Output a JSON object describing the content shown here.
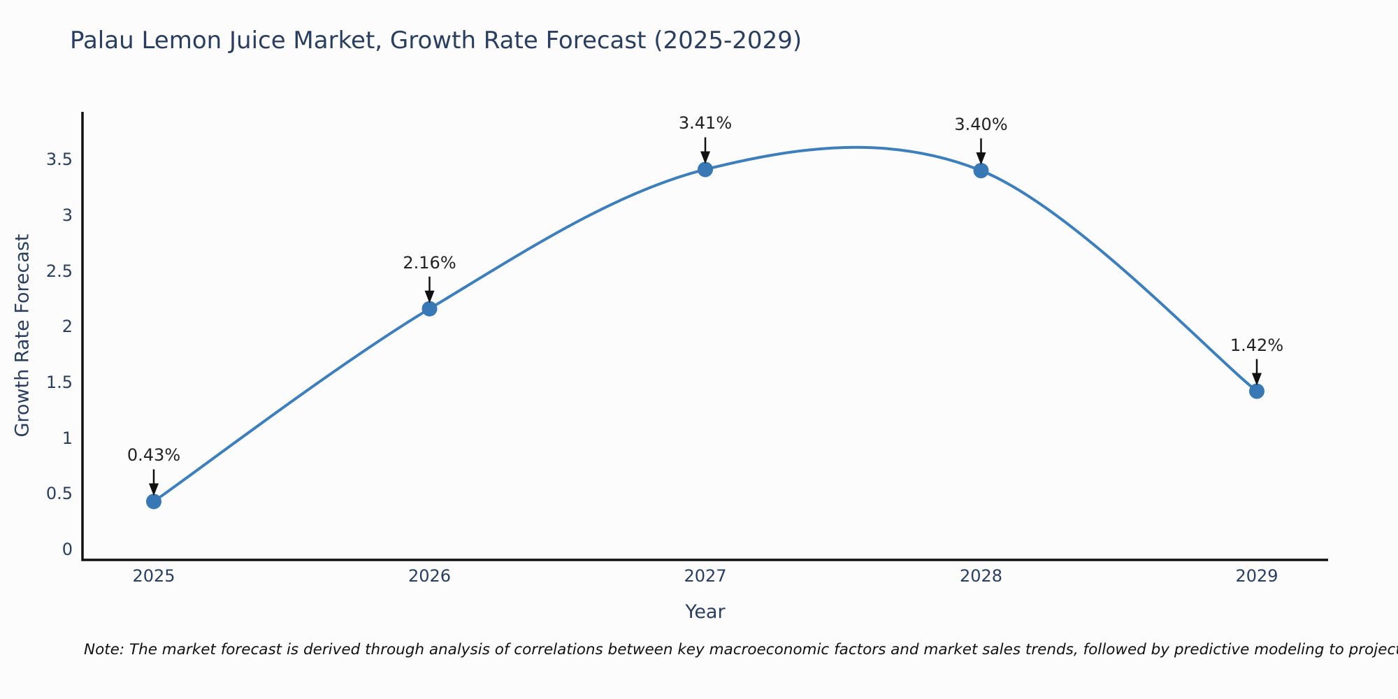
{
  "title": "Palau Lemon Juice Market, Growth Rate Forecast (2025-2029)",
  "note": "Note: The market forecast is derived through analysis of correlations between key macroeconomic factors and market sales trends, followed by predictive modeling to project future sales",
  "chart_data": {
    "type": "line",
    "line_shape": "spline",
    "categories": [
      "2025",
      "2026",
      "2027",
      "2028",
      "2029"
    ],
    "x": [
      2025,
      2026,
      2027,
      2028,
      2029
    ],
    "series": [
      {
        "name": "Growth Rate Forecast",
        "values": [
          0.43,
          2.16,
          3.41,
          3.4,
          1.42
        ]
      }
    ],
    "point_labels": [
      "0.43%",
      "2.16%",
      "3.41%",
      "3.40%",
      "1.42%"
    ],
    "title": "Palau Lemon Juice Market, Growth Rate Forecast (2025-2029)",
    "xlabel": "Year",
    "ylabel": "Growth Rate Forecast",
    "ylim": [
      0,
      3.93
    ],
    "yticks": [
      0,
      0.5,
      1,
      1.5,
      2,
      2.5,
      3,
      3.5
    ],
    "ytick_labels": [
      "0",
      "0.5",
      "1",
      "1.5",
      "2",
      "2.5",
      "3",
      "3.5"
    ],
    "grid": false,
    "legend": "none",
    "markers": true,
    "annotation_arrows": "down",
    "colors": {
      "line": "#3d7ebc",
      "marker": "#3878b4",
      "axis": "#111111",
      "text": "#2a3f5f",
      "annotation_text": "#222222",
      "arrow": "#111111",
      "background": "#fcfcfc"
    }
  }
}
